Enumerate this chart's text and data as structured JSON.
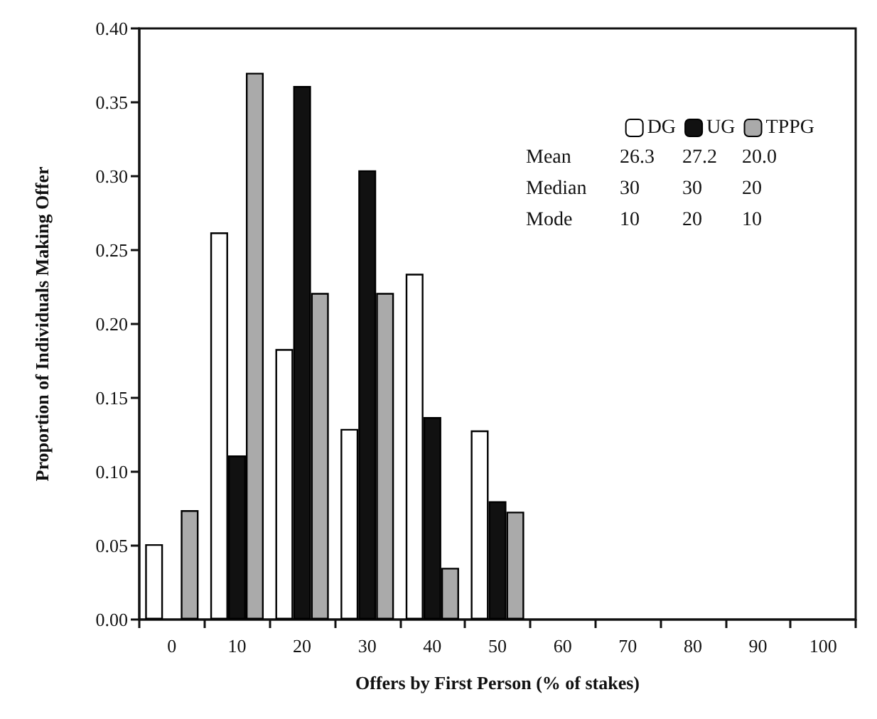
{
  "chart_data": {
    "type": "bar",
    "xlabel": "Offers by First Person (% of stakes)",
    "ylabel": "Proportion of Individuals Making Offer",
    "categories": [
      "0",
      "10",
      "20",
      "30",
      "40",
      "50",
      "60",
      "70",
      "80",
      "90",
      "100"
    ],
    "series": [
      {
        "name": "DG",
        "color": "#ffffff",
        "values": [
          0.051,
          0.262,
          0.183,
          0.129,
          0.234,
          0.128,
          null,
          null,
          null,
          null,
          null
        ]
      },
      {
        "name": "UG",
        "color": "#111111",
        "values": [
          null,
          0.111,
          0.361,
          0.304,
          0.137,
          0.08,
          null,
          null,
          null,
          null,
          null
        ]
      },
      {
        "name": "TPPG",
        "color": "#aaaaaa",
        "values": [
          0.074,
          0.37,
          0.221,
          0.221,
          0.035,
          0.073,
          null,
          null,
          null,
          null,
          null
        ]
      }
    ],
    "ylim": [
      0,
      0.4
    ],
    "yticks": [
      {
        "value": 0,
        "label": "0.00"
      },
      {
        "value": 0.05,
        "label": "0.05"
      },
      {
        "value": 0.1,
        "label": "0.10"
      },
      {
        "value": 0.15,
        "label": "0.15"
      },
      {
        "value": 0.2,
        "label": "0.20"
      },
      {
        "value": 0.25,
        "label": "0.25"
      },
      {
        "value": 0.3,
        "label": "0.30"
      },
      {
        "value": 0.35,
        "label": "0.35"
      },
      {
        "value": 0.4,
        "label": "0.40"
      }
    ],
    "annotations": [
      "Mean 26.3 27.2 20.0",
      "Median 30 30 20",
      "Mode 10 20 10"
    ],
    "grid": false,
    "legend": "top right"
  }
}
